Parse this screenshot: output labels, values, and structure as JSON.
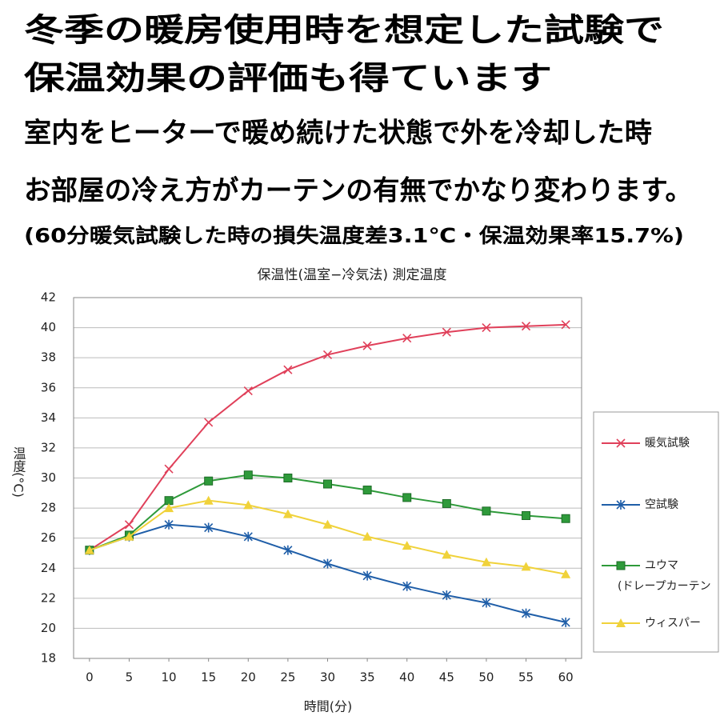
{
  "header": {
    "lines": [
      "冬季の暖房使用時を想定した試験で",
      "保温効果の評価も得ています",
      "室内をヒーターで暖め続けた状態で外を冷却した時",
      "お部屋の冷え方がカーテンの有無でかなり変わります。",
      "(60分暖気試験した時の損失温度差3.1℃・保温効果率15.7%)"
    ]
  },
  "chart_data": {
    "type": "line",
    "title": "保温性(温室−冷気法) 測定温度",
    "xlabel": "時間(分)",
    "ylabel": "温度(°C)",
    "x": [
      0,
      5,
      10,
      15,
      20,
      25,
      30,
      35,
      40,
      45,
      50,
      55,
      60
    ],
    "xlim": [
      -2,
      62
    ],
    "xticks": [
      0,
      5,
      10,
      15,
      20,
      25,
      30,
      35,
      40,
      45,
      50,
      55,
      60
    ],
    "ylim": [
      18,
      42
    ],
    "yticks": [
      18,
      20,
      22,
      24,
      26,
      28,
      30,
      32,
      34,
      36,
      38,
      40,
      42
    ],
    "grid": true,
    "legend": "right",
    "series": [
      {
        "name": "暖気試験",
        "color": "#e0405a",
        "marker": "x",
        "values": [
          25.2,
          26.9,
          30.6,
          33.7,
          35.8,
          37.2,
          38.2,
          38.8,
          39.3,
          39.7,
          40.0,
          40.1,
          40.2
        ]
      },
      {
        "name": "空試験",
        "color": "#1f5ea8",
        "marker": "star",
        "values": [
          25.2,
          26.1,
          26.9,
          26.7,
          26.1,
          25.2,
          24.3,
          23.5,
          22.8,
          22.2,
          21.7,
          21.0,
          20.4
        ]
      },
      {
        "name": "ユウマ",
        "subname": "(ドレープカーテン",
        "color": "#2e9a3a",
        "marker": "square",
        "values": [
          25.2,
          26.2,
          28.5,
          29.8,
          30.2,
          30.0,
          29.6,
          29.2,
          28.7,
          28.3,
          27.8,
          27.5,
          27.3
        ]
      },
      {
        "name": "ウィスパー",
        "color": "#f0d23a",
        "marker": "triangle",
        "values": [
          25.2,
          26.1,
          28.0,
          28.5,
          28.2,
          27.6,
          26.9,
          26.1,
          25.5,
          24.9,
          24.4,
          24.1,
          23.6
        ]
      }
    ]
  }
}
